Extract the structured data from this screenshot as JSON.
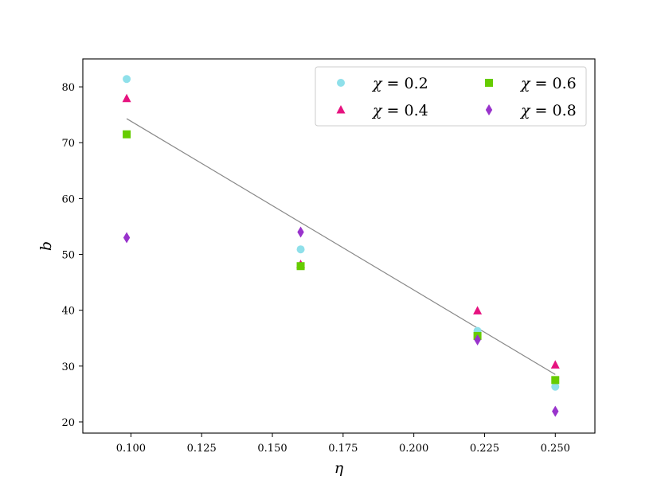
{
  "chart_data": {
    "type": "scatter",
    "xlabel": "η",
    "ylabel": "b",
    "xlim": [
      0.083,
      0.264
    ],
    "ylim": [
      18.0,
      85.0
    ],
    "xticks": [
      "0.100",
      "0.125",
      "0.150",
      "0.175",
      "0.200",
      "0.225",
      "0.250"
    ],
    "yticks": [
      "20",
      "30",
      "40",
      "50",
      "60",
      "70",
      "80"
    ],
    "grid": false,
    "legend": {
      "placement": "top-right",
      "columns": 2
    },
    "series": [
      {
        "name": "χ = 0.2",
        "var": "χ",
        "eq": " = 0.2",
        "marker": "circle",
        "color": "#8fe0ea",
        "points": [
          [
            0.0985,
            81.4
          ],
          [
            0.16,
            50.9
          ],
          [
            0.2225,
            36.3
          ],
          [
            0.25,
            26.3
          ]
        ]
      },
      {
        "name": "χ = 0.4",
        "var": "χ",
        "eq": " = 0.4",
        "marker": "triangle",
        "color": "#e6127f",
        "points": [
          [
            0.0985,
            77.9
          ],
          [
            0.16,
            48.2
          ],
          [
            0.2225,
            39.9
          ],
          [
            0.25,
            30.2
          ]
        ]
      },
      {
        "name": "χ = 0.6",
        "var": "χ",
        "eq": " = 0.6",
        "marker": "square",
        "color": "#66cc00",
        "points": [
          [
            0.0985,
            71.5
          ],
          [
            0.16,
            47.9
          ],
          [
            0.2225,
            35.4
          ],
          [
            0.25,
            27.5
          ]
        ]
      },
      {
        "name": "χ = 0.8",
        "var": "χ",
        "eq": " = 0.8",
        "marker": "diamond",
        "color": "#9933cc",
        "points": [
          [
            0.0985,
            53.0
          ],
          [
            0.16,
            54.0
          ],
          [
            0.2225,
            34.7
          ],
          [
            0.25,
            21.9
          ]
        ]
      }
    ],
    "fit_line": {
      "color": "#888888",
      "points": [
        [
          0.0985,
          74.3
        ],
        [
          0.25,
          28.5
        ]
      ]
    }
  }
}
